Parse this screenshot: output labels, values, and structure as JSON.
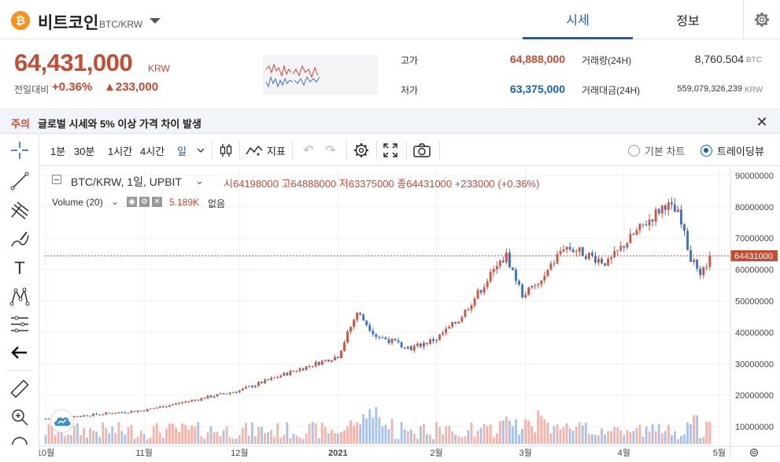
{
  "header": {
    "coin_symbol": "₿",
    "coin_name": "비트코인",
    "pair": "BTC/KRW",
    "tabs": [
      "시세",
      "정보"
    ]
  },
  "price": {
    "current": "64,431,000",
    "unit": "KRW",
    "change_label": "전일대비",
    "change_pct": "+0.36%",
    "change_amt": "▲233,000",
    "up_color": "#c84a31",
    "down_color": "#1261c4"
  },
  "stats": {
    "high_label": "고가",
    "high_value": "64,888,000",
    "low_label": "저가",
    "low_value": "63,375,000",
    "vol_label": "거래량(24H)",
    "vol_value": "8,760.504",
    "vol_unit": "BTC",
    "amt_label": "거래대금(24H)",
    "amt_value": "559,079,326,239",
    "amt_unit": "KRW"
  },
  "notice": {
    "tag": "주의",
    "message": "글로벌 시세와 5% 이상 가격 차이 발생"
  },
  "toolbar": {
    "intervals": [
      "1분",
      "30분",
      "1시간",
      "4시간",
      "일"
    ],
    "indicator_label": "지표",
    "basic_chart": "기본 차트",
    "tradingview": "트레이딩뷰"
  },
  "left_tools": [
    "crosshair-icon",
    "trendline-icon",
    "pitchfork-icon",
    "brush-icon",
    "text-icon",
    "pattern-icon",
    "fib-icon",
    "back-arrow-icon",
    "ruler-icon",
    "zoom-in-icon"
  ],
  "chart_data": {
    "type": "candlestick",
    "title": "BTC/KRW, 1일, UPBIT",
    "ohlc": {
      "open_label": "시",
      "open": "64198000",
      "high_label": "고",
      "high": "64888000",
      "low_label": "저",
      "low": "63375000",
      "close_label": "종",
      "close": "64431000",
      "change": "+233000 (+0.36%)"
    },
    "volume_label": "Volume (20)",
    "volume_value": "5.189K",
    "volume_na": "없음",
    "last_price_tag": "64431000",
    "y_ticks": [
      90000000,
      80000000,
      70000000,
      60000000,
      50000000,
      40000000,
      30000000,
      20000000,
      10000000
    ],
    "ylim": [
      4500000,
      92000000
    ],
    "x_ticks": [
      "10월",
      "11월",
      "12월",
      "2021",
      "2월",
      "3월",
      "4월",
      "5월"
    ],
    "x_tick_day": [
      0,
      31,
      61,
      92,
      123,
      151,
      182,
      212
    ],
    "total_days": 215,
    "close_series": [
      [
        0,
        12500000
      ],
      [
        31,
        15200000
      ],
      [
        61,
        21500000
      ],
      [
        76,
        27000000
      ],
      [
        92,
        32500000
      ],
      [
        98,
        46500000
      ],
      [
        104,
        39000000
      ],
      [
        115,
        35000000
      ],
      [
        123,
        38000000
      ],
      [
        130,
        44000000
      ],
      [
        141,
        59500000
      ],
      [
        145,
        64500000
      ],
      [
        150,
        52000000
      ],
      [
        156,
        56000000
      ],
      [
        163,
        67500000
      ],
      [
        170,
        65000000
      ],
      [
        177,
        62000000
      ],
      [
        182,
        68000000
      ],
      [
        188,
        74000000
      ],
      [
        195,
        81000000
      ],
      [
        199,
        77500000
      ],
      [
        203,
        64000000
      ],
      [
        206,
        57000000
      ],
      [
        209,
        64431000
      ]
    ],
    "up_color": "#d0533f",
    "down_color": "#3e6fc8",
    "current_price": 64431000
  }
}
